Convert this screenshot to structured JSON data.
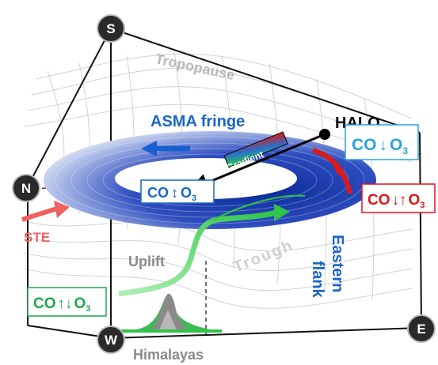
{
  "corners": {
    "south": "S",
    "north": "N",
    "west": "W",
    "east": "E"
  },
  "labels": {
    "tropopause": "Tropopause",
    "asma_fringe": "ASMA  fringe",
    "halo": "HALO",
    "gradient": "Gradient",
    "ste": "STE",
    "uplift": "Uplift",
    "trough": "Trough",
    "eastern": "Eastern",
    "flank": "flank",
    "himalayas": "Himalayas"
  },
  "boxes": {
    "center": {
      "co": "CO",
      "arrows": "↕",
      "o3": "O",
      "sub": "3",
      "color": "#1a66c8"
    },
    "top_right": {
      "co": "CO",
      "arrows": "↓",
      "o3": "O",
      "sub": "3",
      "color": "#29a3e0"
    },
    "right": {
      "co": "CO",
      "arrows": "↓↑",
      "o3": "O",
      "sub": "3",
      "color": "#e0141b"
    },
    "left": {
      "co": "CO",
      "arrows": "↑↓",
      "o3": "O",
      "sub": "3",
      "color": "#1fa64a"
    }
  },
  "colors": {
    "torus": "#1f3fa8",
    "asma_text": "#1a66c8",
    "uplift_green": "#3ddc55",
    "ste_red": "#f06060",
    "eastern_red": "#e01818",
    "grid": "#c8c8c8",
    "corner_fill": "#2a2a2a"
  }
}
